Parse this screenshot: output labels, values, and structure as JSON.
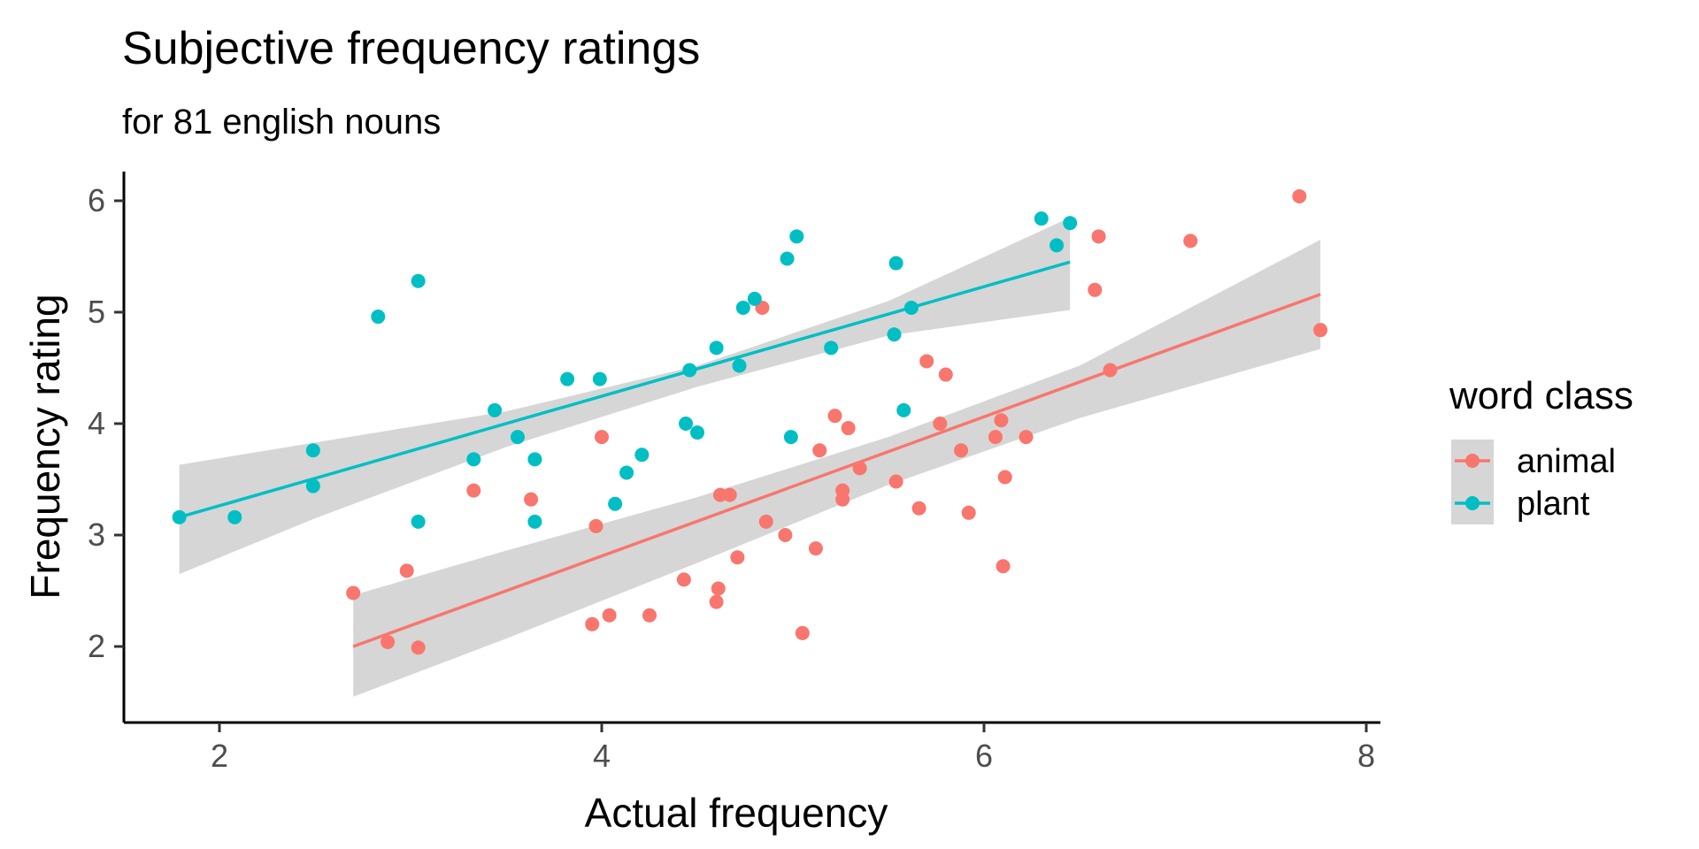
{
  "chart_data": {
    "type": "scatter",
    "title": "Subjective frequency ratings",
    "subtitle": "for 81 english nouns",
    "xlabel": "Actual frequency",
    "ylabel": "Frequency rating",
    "xlim": [
      1.5,
      8.1
    ],
    "ylim": [
      1.3,
      6.25
    ],
    "xticks": [
      2,
      4,
      6,
      8
    ],
    "yticks": [
      2,
      3,
      4,
      5,
      6
    ],
    "grid": false,
    "legend": {
      "title": "word class",
      "position": "right"
    },
    "series": [
      {
        "name": "animal",
        "color": "#F8766D",
        "points": [
          [
            2.7,
            2.48
          ],
          [
            2.88,
            2.04
          ],
          [
            2.98,
            2.68
          ],
          [
            3.04,
            1.99
          ],
          [
            3.33,
            3.4
          ],
          [
            3.63,
            3.32
          ],
          [
            3.95,
            2.2
          ],
          [
            3.97,
            3.08
          ],
          [
            4.0,
            3.88
          ],
          [
            4.04,
            2.28
          ],
          [
            4.25,
            2.28
          ],
          [
            4.43,
            2.6
          ],
          [
            4.6,
            2.4
          ],
          [
            4.61,
            2.52
          ],
          [
            4.62,
            3.36
          ],
          [
            4.67,
            3.36
          ],
          [
            4.71,
            2.8
          ],
          [
            4.84,
            5.04
          ],
          [
            4.86,
            3.12
          ],
          [
            4.96,
            3.0
          ],
          [
            5.05,
            2.12
          ],
          [
            5.12,
            2.88
          ],
          [
            5.14,
            3.76
          ],
          [
            5.22,
            4.07
          ],
          [
            5.26,
            3.32
          ],
          [
            5.26,
            3.4
          ],
          [
            5.29,
            3.96
          ],
          [
            5.35,
            3.6
          ],
          [
            5.54,
            3.48
          ],
          [
            5.66,
            3.24
          ],
          [
            5.7,
            4.56
          ],
          [
            5.77,
            4.0
          ],
          [
            5.8,
            4.44
          ],
          [
            5.88,
            3.76
          ],
          [
            5.92,
            3.2
          ],
          [
            6.06,
            3.88
          ],
          [
            6.09,
            4.03
          ],
          [
            6.1,
            2.72
          ],
          [
            6.11,
            3.52
          ],
          [
            6.22,
            3.88
          ],
          [
            6.58,
            5.2
          ],
          [
            6.6,
            5.68
          ],
          [
            6.66,
            4.48
          ],
          [
            7.08,
            5.64
          ],
          [
            7.65,
            6.04
          ],
          [
            7.76,
            4.84
          ]
        ],
        "fit": {
          "x": [
            2.7,
            7.76
          ],
          "y": [
            2.0,
            5.16
          ]
        },
        "ci_lower": [
          [
            2.7,
            1.55
          ],
          [
            3.5,
            2.07
          ],
          [
            4.5,
            2.75
          ],
          [
            5.5,
            3.45
          ],
          [
            6.5,
            4.05
          ],
          [
            7.76,
            4.67
          ]
        ],
        "ci_upper": [
          [
            2.7,
            2.46
          ],
          [
            3.5,
            2.86
          ],
          [
            4.5,
            3.34
          ],
          [
            5.5,
            3.88
          ],
          [
            6.5,
            4.52
          ],
          [
            7.76,
            5.65
          ]
        ]
      },
      {
        "name": "plant",
        "color": "#00BFC4",
        "points": [
          [
            1.79,
            3.16
          ],
          [
            2.08,
            3.16
          ],
          [
            2.49,
            3.76
          ],
          [
            2.49,
            3.44
          ],
          [
            2.83,
            4.96
          ],
          [
            3.04,
            5.28
          ],
          [
            3.04,
            3.12
          ],
          [
            3.33,
            3.68
          ],
          [
            3.44,
            4.12
          ],
          [
            3.56,
            3.88
          ],
          [
            3.65,
            3.68
          ],
          [
            3.65,
            3.12
          ],
          [
            3.82,
            4.4
          ],
          [
            3.99,
            4.4
          ],
          [
            4.07,
            3.28
          ],
          [
            4.13,
            3.56
          ],
          [
            4.21,
            3.72
          ],
          [
            4.44,
            4.0
          ],
          [
            4.46,
            4.48
          ],
          [
            4.5,
            3.92
          ],
          [
            4.6,
            4.68
          ],
          [
            4.72,
            4.52
          ],
          [
            4.74,
            5.04
          ],
          [
            4.8,
            5.12
          ],
          [
            4.97,
            5.48
          ],
          [
            4.99,
            3.88
          ],
          [
            5.02,
            5.68
          ],
          [
            5.2,
            4.68
          ],
          [
            5.53,
            4.8
          ],
          [
            5.54,
            5.44
          ],
          [
            5.58,
            4.12
          ],
          [
            5.62,
            5.04
          ],
          [
            6.3,
            5.84
          ],
          [
            6.38,
            5.6
          ],
          [
            6.45,
            5.8
          ]
        ],
        "fit": {
          "x": [
            1.79,
            6.45
          ],
          "y": [
            3.16,
            5.45
          ]
        },
        "ci_lower": [
          [
            1.79,
            2.65
          ],
          [
            2.5,
            3.15
          ],
          [
            3.5,
            3.79
          ],
          [
            4.5,
            4.33
          ],
          [
            5.5,
            4.79
          ],
          [
            6.45,
            5.02
          ]
        ],
        "ci_upper": [
          [
            1.79,
            3.63
          ],
          [
            2.5,
            3.83
          ],
          [
            3.5,
            4.11
          ],
          [
            4.5,
            4.52
          ],
          [
            5.5,
            5.1
          ],
          [
            6.45,
            5.85
          ]
        ]
      }
    ]
  }
}
